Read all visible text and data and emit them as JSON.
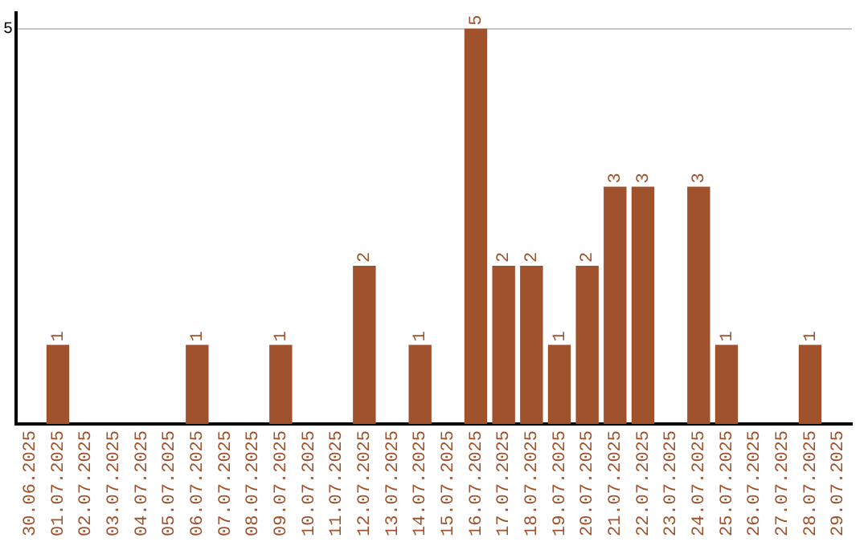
{
  "chart_data": {
    "type": "bar",
    "categories": [
      "30.06.2025",
      "01.07.2025",
      "02.07.2025",
      "03.07.2025",
      "04.07.2025",
      "05.07.2025",
      "06.07.2025",
      "07.07.2025",
      "08.07.2025",
      "09.07.2025",
      "10.07.2025",
      "11.07.2025",
      "12.07.2025",
      "13.07.2025",
      "14.07.2025",
      "15.07.2025",
      "16.07.2025",
      "17.07.2025",
      "18.07.2025",
      "19.07.2025",
      "20.07.2025",
      "21.07.2025",
      "22.07.2025",
      "23.07.2025",
      "24.07.2025",
      "25.07.2025",
      "26.07.2025",
      "27.07.2025",
      "28.07.2025",
      "29.07.2025"
    ],
    "values": [
      0,
      1,
      0,
      0,
      0,
      0,
      1,
      0,
      0,
      1,
      0,
      0,
      2,
      0,
      1,
      0,
      5,
      2,
      2,
      1,
      2,
      3,
      3,
      0,
      3,
      1,
      0,
      0,
      1,
      0
    ],
    "value_labels": [
      null,
      "1",
      null,
      null,
      null,
      null,
      "1",
      null,
      null,
      "1",
      null,
      null,
      "2",
      null,
      "1",
      null,
      "5",
      "2",
      "2",
      "1",
      "2",
      "3",
      "3",
      null,
      "3",
      "1",
      null,
      null,
      "1",
      null
    ],
    "color": "#a0522d",
    "ylim": [
      0,
      5.2
    ],
    "yticks": [
      5
    ],
    "grid": "y",
    "legend": false
  }
}
